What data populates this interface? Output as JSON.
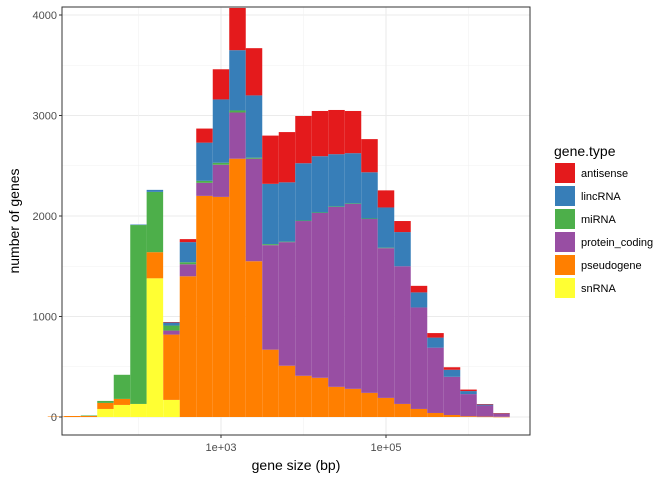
{
  "chart_data": {
    "type": "bar",
    "stacked": true,
    "x_scale": "log10",
    "xlabel": "gene size (bp)",
    "ylabel": "number of genes",
    "x_ticks": [
      "1e+03",
      "1e+05"
    ],
    "y_ticks": [
      "0",
      "1000",
      "2000",
      "3000",
      "4000"
    ],
    "ylim": [
      0,
      4000
    ],
    "grid": true,
    "legend_title": "gene.type",
    "legend_position": "right",
    "stack_order": [
      "snRNA",
      "pseudogene",
      "protein_coding",
      "miRNA",
      "lincRNA",
      "antisense"
    ],
    "x_bin_centers": [
      10,
      15.8,
      25.1,
      39.8,
      63.1,
      100,
      158,
      251,
      398,
      631,
      1000,
      1585,
      2512,
      3981,
      6310,
      10000,
      15849,
      25119,
      39811,
      63096,
      100000,
      158489,
      251189,
      398107,
      630957,
      1000000,
      1584893,
      2511886
    ],
    "series": [
      {
        "name": "antisense",
        "color": "#E41A1C",
        "values": [
          0,
          0,
          0,
          0,
          0,
          0,
          0,
          5,
          30,
          140,
          300,
          420,
          470,
          480,
          500,
          470,
          450,
          440,
          420,
          330,
          170,
          110,
          65,
          45,
          25,
          15,
          5,
          2
        ]
      },
      {
        "name": "lincRNA",
        "color": "#377EB8",
        "values": [
          0,
          0,
          0,
          0,
          0,
          5,
          20,
          30,
          200,
          380,
          630,
          600,
          620,
          600,
          590,
          570,
          560,
          520,
          500,
          460,
          400,
          340,
          150,
          100,
          70,
          30,
          10,
          5
        ]
      },
      {
        "name": "miRNA",
        "color": "#4DAF4A",
        "values": [
          0,
          0,
          5,
          20,
          240,
          1780,
          600,
          50,
          20,
          20,
          20,
          20,
          10,
          10,
          5,
          5,
          5,
          5,
          5,
          5,
          5,
          0,
          0,
          0,
          0,
          0,
          0,
          0
        ]
      },
      {
        "name": "protein_coding",
        "color": "#984EA3",
        "values": [
          0,
          0,
          0,
          0,
          0,
          0,
          0,
          40,
          120,
          130,
          320,
          460,
          1020,
          1040,
          1230,
          1540,
          1640,
          1790,
          1840,
          1730,
          1490,
          1370,
          1010,
          650,
          380,
          220,
          110,
          30
        ]
      },
      {
        "name": "pseudogene",
        "color": "#FF7F00",
        "values": [
          5,
          10,
          10,
          60,
          60,
          0,
          260,
          650,
          1400,
          2200,
          2190,
          2570,
          1550,
          670,
          510,
          410,
          390,
          300,
          280,
          240,
          190,
          130,
          80,
          40,
          20,
          8,
          4,
          2
        ]
      },
      {
        "name": "snRNA",
        "color": "#FFFF33",
        "values": [
          0,
          0,
          0,
          80,
          120,
          130,
          1380,
          170,
          0,
          0,
          0,
          0,
          0,
          0,
          0,
          0,
          0,
          0,
          0,
          0,
          0,
          0,
          0,
          0,
          0,
          0,
          0,
          0
        ]
      }
    ]
  }
}
